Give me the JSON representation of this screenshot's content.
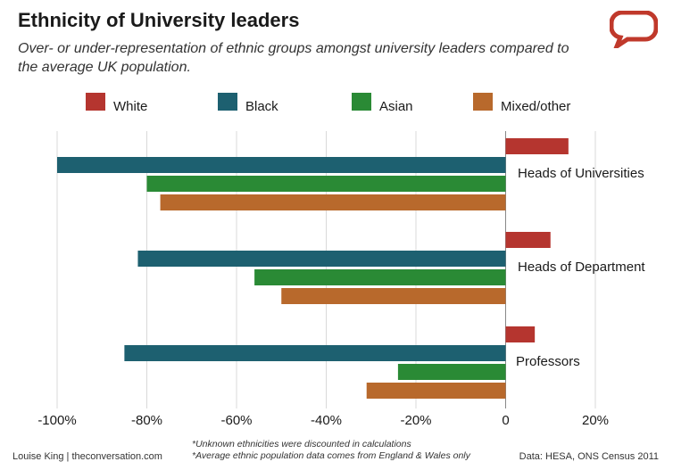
{
  "header": {
    "title": "Ethnicity of University leaders",
    "subtitle": "Over- or under-representation of ethnic groups amongst university leaders compared to the average UK population."
  },
  "footer": {
    "author": "Louise King | theconversation.com",
    "note_1": "*Unknown ethnicities were discounted in calculations",
    "note_2": "*Average ethnic population data comes from England & Wales only",
    "source": "Data: HESA, ONS Census 2011"
  },
  "logo_icon": "speech-bubble-icon",
  "chart_data": {
    "type": "bar",
    "orientation": "horizontal",
    "categories": [
      "Heads of Universities",
      "Heads of Department",
      "Professors"
    ],
    "series": [
      {
        "name": "White",
        "color": "#b5352f",
        "values": [
          14,
          10,
          6.5
        ]
      },
      {
        "name": "Black",
        "color": "#1d6070",
        "values": [
          -100,
          -82,
          -85
        ]
      },
      {
        "name": "Asian",
        "color": "#2a8a35",
        "values": [
          -80,
          -56,
          -24
        ]
      },
      {
        "name": "Mixed/other",
        "color": "#b8692c",
        "values": [
          -77,
          -50,
          -31
        ]
      }
    ],
    "xlim": [
      -100,
      20
    ],
    "xticks": [
      -100,
      -80,
      -60,
      -40,
      -20,
      0,
      20
    ],
    "xtick_labels": [
      "-100%",
      "-80%",
      "-60%",
      "-40%",
      "-20%",
      "0",
      "20%"
    ],
    "grid": true,
    "legend_position": "top"
  }
}
